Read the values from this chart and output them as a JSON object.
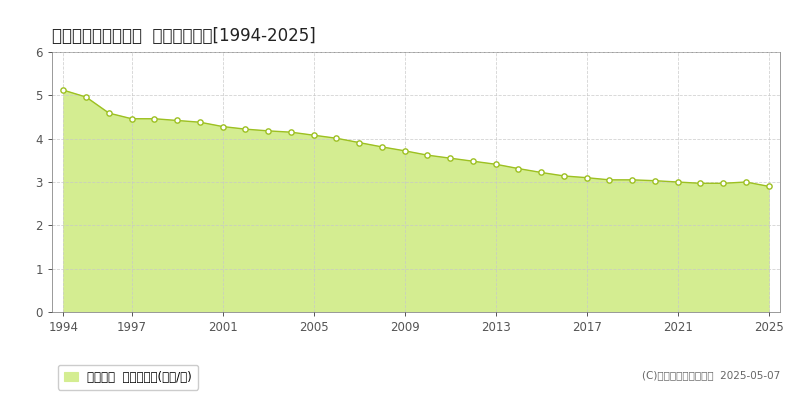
{
  "title": "足寄郡足寄町南六条  公示地価推移[1994-2025]",
  "years": [
    1994,
    1995,
    1996,
    1997,
    1998,
    1999,
    2000,
    2001,
    2002,
    2003,
    2004,
    2005,
    2006,
    2007,
    2008,
    2009,
    2010,
    2011,
    2012,
    2013,
    2014,
    2015,
    2016,
    2017,
    2018,
    2019,
    2020,
    2021,
    2022,
    2023,
    2024,
    2025
  ],
  "values": [
    5.12,
    4.96,
    4.59,
    4.46,
    4.46,
    4.42,
    4.38,
    4.28,
    4.22,
    4.18,
    4.15,
    4.08,
    4.01,
    3.91,
    3.81,
    3.72,
    3.62,
    3.55,
    3.48,
    3.41,
    3.31,
    3.22,
    3.14,
    3.1,
    3.05,
    3.05,
    3.03,
    3.0,
    2.97,
    2.97,
    3.0,
    2.9
  ],
  "line_color": "#9dc022",
  "fill_color": "#d4ed91",
  "marker_face_color": "#ffffff",
  "marker_edge_color": "#9dc022",
  "background_color": "#ffffff",
  "grid_color_h": "#c8c8c8",
  "grid_color_v": "#c8c8c8",
  "axis_color": "#555555",
  "ylim": [
    0,
    6
  ],
  "yticks": [
    0,
    1,
    2,
    3,
    4,
    5,
    6
  ],
  "xticks": [
    1994,
    1997,
    2001,
    2005,
    2009,
    2013,
    2017,
    2021,
    2025
  ],
  "legend_label": "公示地価  平均坪単価(万円/坪)",
  "copyright_text": "(C)土地価格ドットコム  2025-05-07",
  "title_fontsize": 12,
  "axis_fontsize": 8.5,
  "legend_fontsize": 8.5
}
